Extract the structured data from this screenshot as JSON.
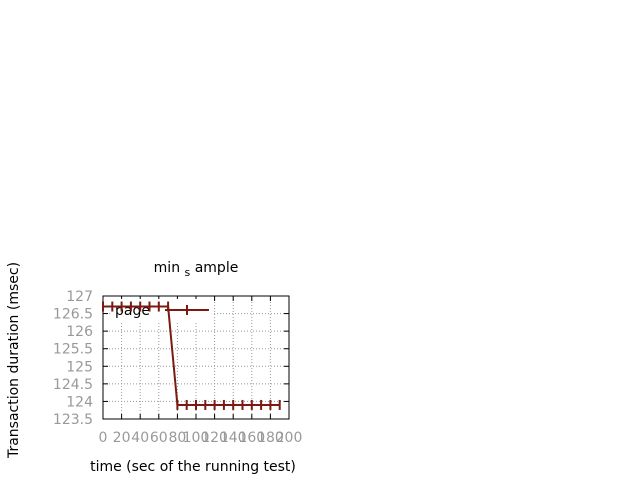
{
  "chart_data": {
    "type": "line",
    "title_main": "min",
    "title_sub": "s",
    "title_rest": "ample",
    "xlabel": "time (sec of the running test)",
    "ylabel": "Transaction duration (msec)",
    "xlim": [
      0,
      200
    ],
    "ylim": [
      123.5,
      127
    ],
    "grid": true,
    "legend_placement": "top-left",
    "xticks": [
      0,
      20,
      40,
      60,
      80,
      100,
      120,
      140,
      160,
      180,
      200
    ],
    "xtick_labels": [
      "0",
      "20",
      "40",
      "60",
      "80",
      "100",
      "120",
      "140",
      "160",
      "180",
      "200"
    ],
    "yticks": [
      123.5,
      124,
      124.5,
      125,
      125.5,
      126,
      126.5,
      127
    ],
    "ytick_labels": [
      "123.5",
      "124",
      "124.5",
      "125",
      "125.5",
      "126",
      "126.5",
      "127"
    ],
    "series": [
      {
        "name": "page",
        "color": "#7a1a10",
        "x": [
          0,
          10,
          20,
          30,
          40,
          50,
          60,
          70,
          80,
          90,
          100,
          110,
          120,
          130,
          140,
          150,
          160,
          170,
          180,
          190
        ],
        "y": [
          126.7,
          126.7,
          126.7,
          126.7,
          126.7,
          126.7,
          126.7,
          126.7,
          123.9,
          123.9,
          123.9,
          123.9,
          123.9,
          123.9,
          123.9,
          123.9,
          123.9,
          123.9,
          123.9,
          123.9
        ]
      }
    ]
  }
}
